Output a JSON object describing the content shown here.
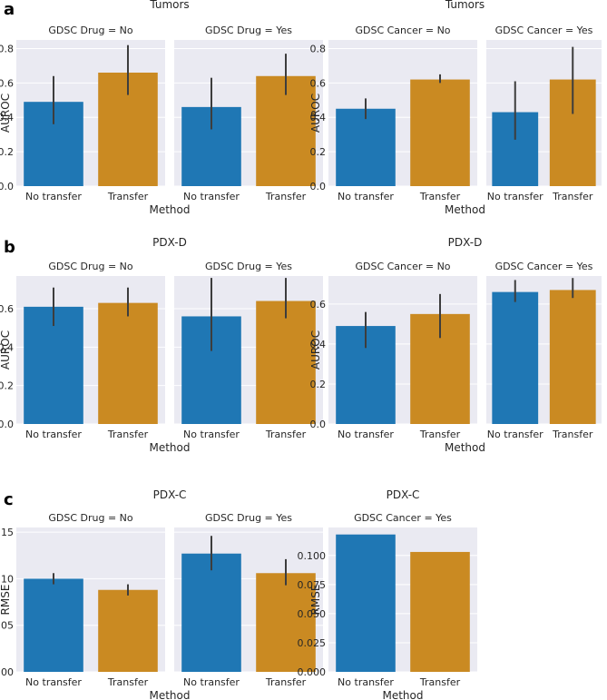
{
  "colors": {
    "no_transfer": "#1f77b4",
    "transfer": "#ca8a22",
    "panel_bg": "#eaeaf2",
    "error_bar": "#3d3d3d"
  },
  "chart_data": [
    {
      "type": "bar",
      "row_letter": "a",
      "title": "Tumors",
      "xlabel": "Method",
      "ylabel": "AUROC",
      "ylim": [
        0,
        0.85
      ],
      "yticks": [
        "0.0",
        "0.2",
        "0.4",
        "0.6",
        "0.8"
      ],
      "grid": true,
      "categories": [
        "No transfer",
        "Transfer"
      ],
      "panels": [
        {
          "title": "GDSC Drug = No",
          "values": [
            0.49,
            0.66
          ],
          "ci_low": [
            0.36,
            0.53
          ],
          "ci_high": [
            0.64,
            0.82
          ]
        },
        {
          "title": "GDSC Drug = Yes",
          "values": [
            0.46,
            0.64
          ],
          "ci_low": [
            0.33,
            0.53
          ],
          "ci_high": [
            0.63,
            0.77
          ]
        }
      ]
    },
    {
      "type": "bar",
      "row_letter": "",
      "title": "Tumors",
      "xlabel": "Method",
      "ylabel": "AUROC",
      "ylim": [
        0,
        0.85
      ],
      "yticks": [
        "0.0",
        "0.2",
        "0.4",
        "0.6",
        "0.8"
      ],
      "grid": true,
      "categories": [
        "No transfer",
        "Transfer"
      ],
      "panels": [
        {
          "title": "GDSC Cancer = No",
          "values": [
            0.45,
            0.62
          ],
          "ci_low": [
            0.39,
            0.6
          ],
          "ci_high": [
            0.51,
            0.65
          ]
        },
        {
          "title": "GDSC Cancer = Yes",
          "values": [
            0.43,
            0.62
          ],
          "ci_low": [
            0.27,
            0.42
          ],
          "ci_high": [
            0.61,
            0.81
          ]
        }
      ]
    },
    {
      "type": "bar",
      "row_letter": "b",
      "title": "PDX-D",
      "xlabel": "Method",
      "ylabel": "AUROC",
      "ylim": [
        0,
        0.77
      ],
      "yticks": [
        "0.0",
        "0.2",
        "0.4",
        "0.6"
      ],
      "grid": true,
      "categories": [
        "No transfer",
        "Transfer"
      ],
      "panels": [
        {
          "title": "GDSC Drug = No",
          "values": [
            0.61,
            0.63
          ],
          "ci_low": [
            0.51,
            0.56
          ],
          "ci_high": [
            0.71,
            0.71
          ]
        },
        {
          "title": "GDSC Drug = Yes",
          "values": [
            0.56,
            0.64
          ],
          "ci_low": [
            0.38,
            0.55
          ],
          "ci_high": [
            0.76,
            0.76
          ]
        }
      ]
    },
    {
      "type": "bar",
      "row_letter": "",
      "title": "PDX-D",
      "xlabel": "Method",
      "ylabel": "AUROC",
      "ylim": [
        0,
        0.74
      ],
      "yticks": [
        "0.0",
        "0.2",
        "0.4",
        "0.6"
      ],
      "grid": true,
      "categories": [
        "No transfer",
        "Transfer"
      ],
      "panels": [
        {
          "title": "GDSC Cancer = No",
          "values": [
            0.49,
            0.55
          ],
          "ci_low": [
            0.38,
            0.43
          ],
          "ci_high": [
            0.56,
            0.65
          ]
        },
        {
          "title": "GDSC Cancer = Yes",
          "values": [
            0.66,
            0.67
          ],
          "ci_low": [
            0.61,
            0.63
          ],
          "ci_high": [
            0.72,
            0.73
          ]
        }
      ]
    },
    {
      "type": "bar",
      "row_letter": "c",
      "title": "PDX-C",
      "xlabel": "Method",
      "ylabel": "RMSE",
      "ylim": [
        0,
        0.155
      ],
      "yticks": [
        "0.00",
        "0.05",
        "0.10",
        "0.15"
      ],
      "grid": true,
      "categories": [
        "No transfer",
        "Transfer"
      ],
      "panels": [
        {
          "title": "GDSC Drug = No",
          "values": [
            0.1,
            0.088
          ],
          "ci_low": [
            0.094,
            0.082
          ],
          "ci_high": [
            0.106,
            0.094
          ]
        },
        {
          "title": "GDSC Drug = Yes",
          "values": [
            0.127,
            0.106
          ],
          "ci_low": [
            0.109,
            0.093
          ],
          "ci_high": [
            0.146,
            0.121
          ]
        }
      ]
    },
    {
      "type": "bar",
      "row_letter": "",
      "title": "PDX-C",
      "xlabel": "Method",
      "ylabel": "RMSE",
      "ylim": [
        0,
        0.124
      ],
      "yticks": [
        "0.000",
        "0.025",
        "0.050",
        "0.075",
        "0.100"
      ],
      "grid": true,
      "categories": [
        "No transfer",
        "Transfer"
      ],
      "panels": [
        {
          "title": "GDSC Cancer = Yes",
          "values": [
            0.118,
            0.103
          ],
          "ci_low": [
            null,
            null
          ],
          "ci_high": [
            null,
            null
          ]
        }
      ]
    }
  ]
}
